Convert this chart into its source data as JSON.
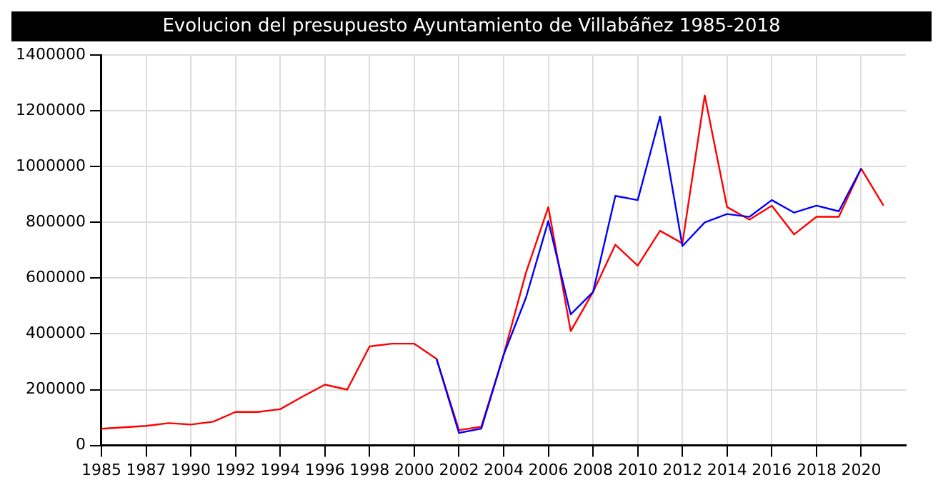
{
  "chart_data": {
    "type": "line",
    "title": "Evolucion del presupuesto Ayuntamiento de Villabáñez 1985-2018",
    "categories": [
      "1985",
      null,
      "1987",
      null,
      "1990",
      null,
      "1992",
      null,
      "1994",
      null,
      "1996",
      null,
      "1998",
      null,
      "2000",
      null,
      "2002",
      null,
      "2004",
      null,
      "2006",
      null,
      "2008",
      null,
      "2010",
      null,
      "2012",
      null,
      "2014",
      null,
      "2016",
      null,
      "2018",
      null,
      "2020",
      null
    ],
    "series": [
      {
        "color": "#0000ff",
        "values": [
          null,
          null,
          null,
          null,
          null,
          null,
          null,
          null,
          null,
          null,
          null,
          null,
          null,
          null,
          null,
          310000,
          45000,
          60000,
          325000,
          530000,
          805000,
          470000,
          550000,
          895000,
          880000,
          1180000,
          715000,
          800000,
          830000,
          820000,
          880000,
          835000,
          860000,
          840000,
          993000,
          null
        ]
      },
      {
        "color": "#ff0000",
        "values": [
          60000,
          65000,
          70000,
          80000,
          75000,
          85000,
          120000,
          120000,
          130000,
          175000,
          218000,
          200000,
          355000,
          365000,
          365000,
          310000,
          55000,
          67000,
          325000,
          620000,
          855000,
          410000,
          550000,
          720000,
          645000,
          770000,
          725000,
          1255000,
          855000,
          810000,
          860000,
          757000,
          820000,
          820000,
          993000,
          860000
        ]
      }
    ],
    "ylim": [
      0,
      1400000
    ],
    "yticks": [
      0,
      200000,
      400000,
      600000,
      800000,
      1000000,
      1200000,
      1400000
    ],
    "grid": true,
    "legend": false,
    "marker": "none",
    "line_style": "solid"
  }
}
